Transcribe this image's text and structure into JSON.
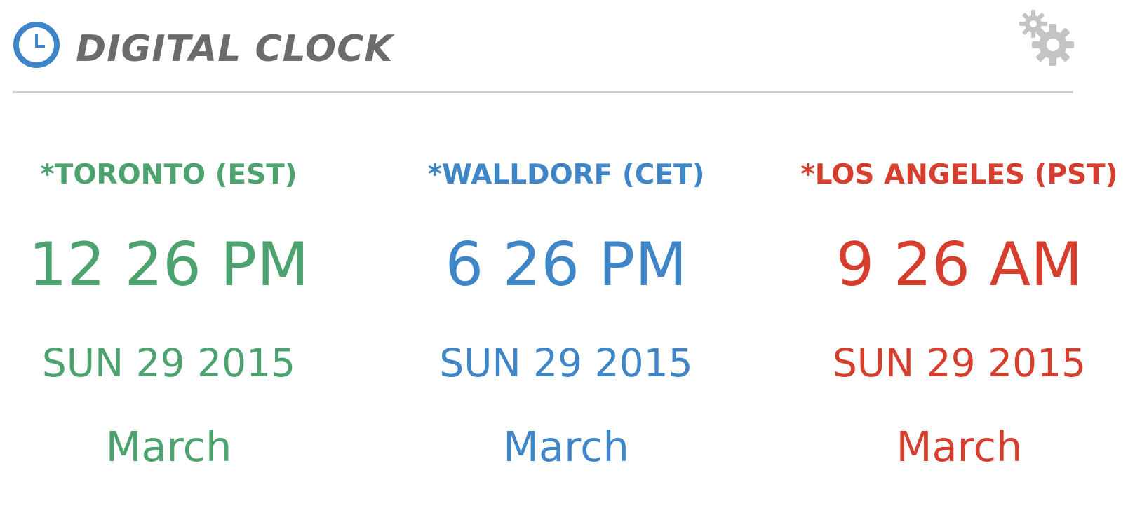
{
  "app": {
    "title": "DIGITAL CLOCK",
    "accent_color": "#3f86c8",
    "title_color": "#6b6b6b",
    "divider_color": "#cfcfcf",
    "header_icon": "clock-icon",
    "settings_icon": "gears-icon"
  },
  "clocks": [
    {
      "city": "*TORONTO (EST)",
      "time": "12 26 PM",
      "date": "SUN 29 2015",
      "month": "March",
      "color": "#4da36f"
    },
    {
      "city": "*WALLDORF (CET)",
      "time": "6 26 PM",
      "date": "SUN 29 2015",
      "month": "March",
      "color": "#3f86c8"
    },
    {
      "city": "*LOS ANGELES (PST)",
      "time": "9 26 AM",
      "date": "SUN 29 2015",
      "month": "March",
      "color": "#d63f2e"
    }
  ]
}
